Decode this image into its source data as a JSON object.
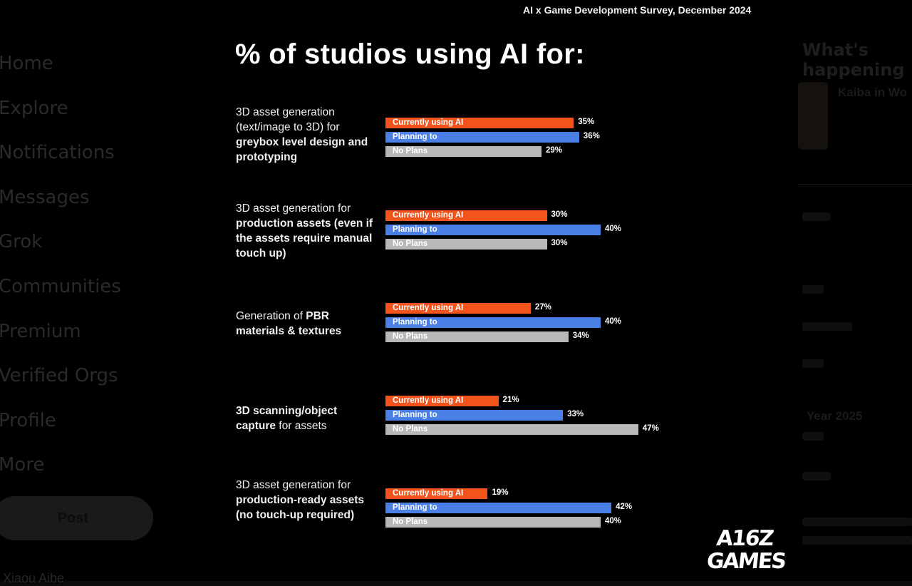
{
  "background_ui": {
    "nav_items": [
      "Home",
      "Explore",
      "Notifications",
      "Messages",
      "Grok",
      "Communities",
      "Premium",
      "Verified Orgs",
      "Profile",
      "More"
    ],
    "post_label": "Post",
    "user_name": "Xiaou Aibe",
    "happening_title": "What's happening",
    "trend_title": "Kaiba in Wo",
    "trend_year": "Year 2025"
  },
  "infographic": {
    "survey_caption": "AI x Game Development Survey, December 2024",
    "logo_line1": "A16Z",
    "logo_line2": "GAMES"
  },
  "chart_data": {
    "type": "bar",
    "orientation": "horizontal",
    "title": "% of studios using AI for:",
    "unit": "%",
    "groups": [
      {
        "label_parts": [
          [
            "3D asset generation (text/image to 3D) for ",
            false
          ],
          [
            "greybox level design and prototyping",
            true
          ]
        ]
      },
      {
        "label_parts": [
          [
            "3D asset generation for ",
            false
          ],
          [
            "production assets (even if the assets require manual touch up)",
            true
          ]
        ]
      },
      {
        "label_parts": [
          [
            "Generation of ",
            false
          ],
          [
            "PBR materials & textures",
            true
          ]
        ]
      },
      {
        "label_parts": [
          [
            "3D scanning/object capture",
            true
          ],
          [
            " for assets",
            false
          ]
        ]
      },
      {
        "label_parts": [
          [
            "3D asset generation for ",
            false
          ],
          [
            "production-ready assets (no touch-up required)",
            true
          ]
        ]
      }
    ],
    "series": [
      {
        "name": "Currently using AI",
        "color": "#f2541b",
        "values": [
          35,
          30,
          27,
          21,
          19
        ]
      },
      {
        "name": "Planning to",
        "color": "#4a7fe6",
        "values": [
          36,
          40,
          40,
          33,
          42
        ]
      },
      {
        "name": "No Plans",
        "color": "#b8b8b8",
        "values": [
          29,
          30,
          34,
          47,
          40
        ]
      }
    ],
    "xlim": [
      0,
      47
    ]
  }
}
